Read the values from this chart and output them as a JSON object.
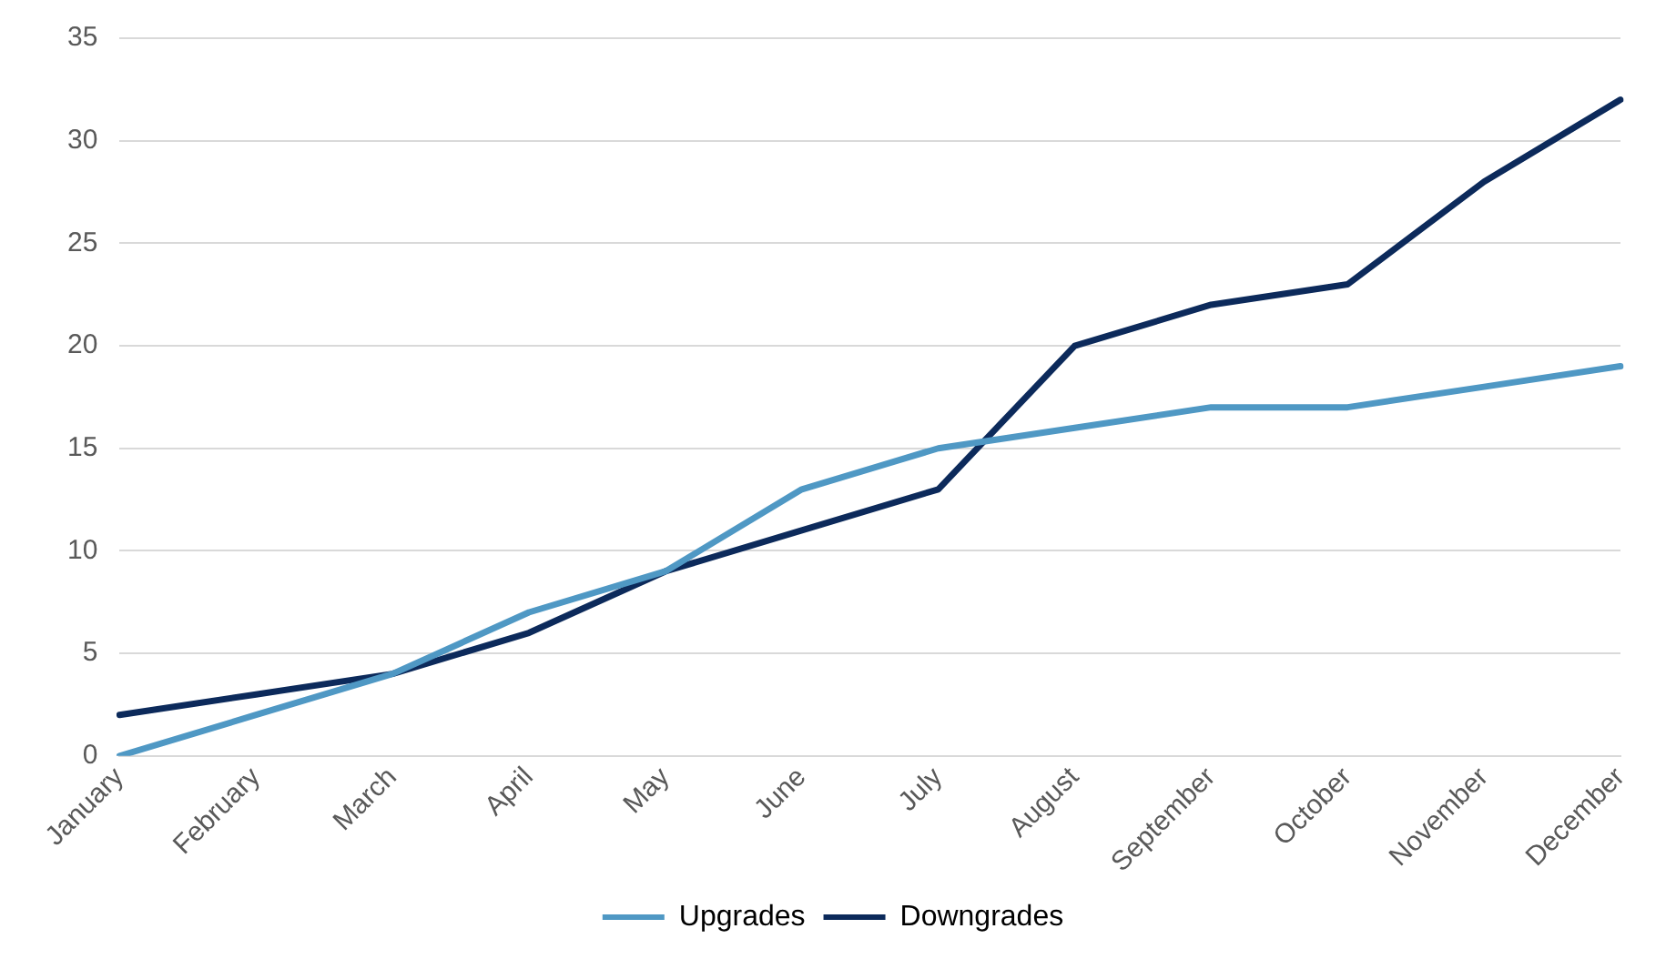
{
  "chart_data": {
    "type": "line",
    "categories": [
      "January",
      "February",
      "March",
      "April",
      "May",
      "June",
      "July",
      "August",
      "September",
      "October",
      "November",
      "December"
    ],
    "series": [
      {
        "name": "Upgrades",
        "color": "#4f98c4",
        "values": [
          0,
          2,
          4,
          7,
          9,
          13,
          15,
          16,
          17,
          17,
          18,
          19
        ]
      },
      {
        "name": "Downgrades",
        "color": "#0c2a5b",
        "values": [
          2,
          3,
          4,
          6,
          9,
          11,
          13,
          20,
          22,
          23,
          28,
          32
        ]
      }
    ],
    "ylim": [
      0,
      35
    ],
    "yticks": [
      0,
      5,
      10,
      15,
      20,
      25,
      30,
      35
    ],
    "grid": "y",
    "legend": "bottom",
    "marker": "none",
    "line_style": "solid"
  }
}
